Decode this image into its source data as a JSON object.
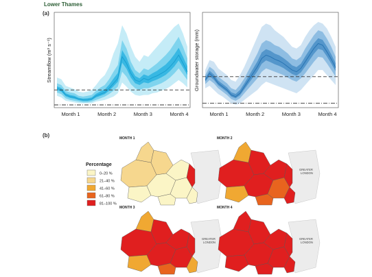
{
  "figure_title": "Lower Thames",
  "panel_a_label": "(a)",
  "panel_b_label": "(b)",
  "legend": {
    "title": "Percentage",
    "items": [
      {
        "label": "0–20 %",
        "color": "#fbf5c6"
      },
      {
        "label": "21–40 %",
        "color": "#f6d78e"
      },
      {
        "label": "41–60 %",
        "color": "#f0a832"
      },
      {
        "label": "61–80 %",
        "color": "#e8641e"
      },
      {
        "label": "81–100 %",
        "color": "#e01f1f"
      }
    ]
  },
  "map_labels": {
    "greater_london": [
      "GREATER",
      "LONDON"
    ],
    "map_titles": [
      "MONTH 1",
      "MONTH 2",
      "MONTH 3",
      "MONTH 4"
    ]
  },
  "chart_data": [
    {
      "type": "area",
      "ylabel": "Streamflow (m³ s⁻¹)",
      "xlabel": "",
      "categories": [
        "Month 1",
        "Month 2",
        "Month 3",
        "Month 4"
      ],
      "x": [
        0,
        0.15,
        0.3,
        0.45,
        0.6,
        0.75,
        0.9,
        1.05,
        1.2,
        1.35,
        1.5,
        1.65,
        1.8,
        1.95,
        2.1,
        2.25,
        2.4,
        2.55,
        2.7,
        2.85,
        3.0,
        3.15,
        3.3,
        3.45,
        3.6,
        3.75,
        3.9,
        4.05,
        4.2,
        4.35,
        4.5
      ],
      "median": [
        0.2,
        0.18,
        0.12,
        0.1,
        0.09,
        0.07,
        0.06,
        0.06,
        0.07,
        0.11,
        0.13,
        0.15,
        0.2,
        0.26,
        0.32,
        0.58,
        0.5,
        0.38,
        0.3,
        0.28,
        0.32,
        0.3,
        0.33,
        0.35,
        0.38,
        0.41,
        0.46,
        0.52,
        0.6,
        0.5,
        0.4
      ],
      "bands": [
        {
          "lo": [
            0.15,
            0.13,
            0.08,
            0.06,
            0.05,
            0.04,
            0.03,
            0.03,
            0.04,
            0.06,
            0.08,
            0.1,
            0.13,
            0.17,
            0.22,
            0.4,
            0.34,
            0.25,
            0.2,
            0.18,
            0.2,
            0.2,
            0.22,
            0.24,
            0.26,
            0.29,
            0.33,
            0.38,
            0.44,
            0.37,
            0.3
          ],
          "hi": [
            0.26,
            0.24,
            0.17,
            0.15,
            0.14,
            0.11,
            0.1,
            0.11,
            0.12,
            0.17,
            0.21,
            0.24,
            0.31,
            0.4,
            0.48,
            0.78,
            0.68,
            0.52,
            0.42,
            0.38,
            0.44,
            0.42,
            0.46,
            0.5,
            0.55,
            0.6,
            0.66,
            0.74,
            0.82,
            0.7,
            0.56
          ]
        },
        {
          "lo": [
            0.11,
            0.09,
            0.05,
            0.04,
            0.03,
            0.02,
            0.02,
            0.02,
            0.02,
            0.04,
            0.05,
            0.06,
            0.08,
            0.1,
            0.14,
            0.27,
            0.22,
            0.16,
            0.12,
            0.11,
            0.12,
            0.12,
            0.14,
            0.15,
            0.17,
            0.19,
            0.22,
            0.26,
            0.3,
            0.26,
            0.21
          ],
          "hi": [
            0.33,
            0.31,
            0.23,
            0.21,
            0.19,
            0.16,
            0.15,
            0.16,
            0.18,
            0.24,
            0.31,
            0.36,
            0.46,
            0.62,
            0.74,
            0.96,
            0.86,
            0.7,
            0.58,
            0.52,
            0.6,
            0.58,
            0.64,
            0.7,
            0.76,
            0.82,
            0.88,
            0.94,
            0.98,
            0.86,
            0.7
          ]
        }
      ],
      "thresholds": [
        0.18,
        0.0
      ],
      "ylim": [
        0,
        1
      ]
    },
    {
      "type": "area",
      "ylabel": "Groundwater storage (mm)",
      "xlabel": "",
      "categories": [
        "Month 1",
        "Month 2",
        "Month 3",
        "Month 4"
      ],
      "x": [
        0,
        0.15,
        0.3,
        0.45,
        0.6,
        0.75,
        0.9,
        1.05,
        1.2,
        1.35,
        1.5,
        1.65,
        1.8,
        1.95,
        2.1,
        2.25,
        2.4,
        2.55,
        2.7,
        2.85,
        3.0,
        3.15,
        3.3,
        3.45,
        3.6,
        3.75,
        3.9,
        4.05,
        4.2,
        4.35,
        4.5
      ],
      "median": [
        0.3,
        0.38,
        0.33,
        0.26,
        0.22,
        0.18,
        0.12,
        0.1,
        0.14,
        0.22,
        0.3,
        0.38,
        0.46,
        0.56,
        0.6,
        0.58,
        0.55,
        0.53,
        0.5,
        0.46,
        0.42,
        0.4,
        0.44,
        0.52,
        0.6,
        0.68,
        0.74,
        0.72,
        0.64,
        0.55,
        0.45
      ],
      "bands": [
        {
          "lo": [
            0.25,
            0.3,
            0.26,
            0.2,
            0.16,
            0.12,
            0.07,
            0.05,
            0.08,
            0.14,
            0.2,
            0.26,
            0.32,
            0.4,
            0.44,
            0.42,
            0.4,
            0.38,
            0.36,
            0.33,
            0.3,
            0.28,
            0.32,
            0.38,
            0.45,
            0.52,
            0.58,
            0.57,
            0.5,
            0.42,
            0.34
          ],
          "hi": [
            0.36,
            0.46,
            0.42,
            0.34,
            0.3,
            0.26,
            0.2,
            0.18,
            0.24,
            0.32,
            0.42,
            0.52,
            0.62,
            0.74,
            0.78,
            0.76,
            0.72,
            0.7,
            0.66,
            0.62,
            0.56,
            0.54,
            0.58,
            0.68,
            0.76,
            0.84,
            0.9,
            0.88,
            0.8,
            0.7,
            0.58
          ]
        },
        {
          "lo": [
            0.2,
            0.23,
            0.18,
            0.13,
            0.1,
            0.06,
            0.02,
            0.0,
            0.02,
            0.06,
            0.1,
            0.14,
            0.18,
            0.24,
            0.28,
            0.26,
            0.24,
            0.22,
            0.2,
            0.18,
            0.16,
            0.14,
            0.18,
            0.24,
            0.3,
            0.36,
            0.42,
            0.42,
            0.36,
            0.3,
            0.24
          ],
          "hi": [
            0.42,
            0.54,
            0.52,
            0.44,
            0.4,
            0.36,
            0.3,
            0.28,
            0.36,
            0.46,
            0.58,
            0.7,
            0.82,
            0.94,
            0.98,
            0.96,
            0.9,
            0.86,
            0.82,
            0.76,
            0.7,
            0.68,
            0.72,
            0.82,
            0.9,
            0.96,
            1.0,
            0.98,
            0.92,
            0.82,
            0.7
          ]
        }
      ],
      "thresholds": [
        0.34,
        0.02
      ],
      "ylim": [
        0,
        1
      ]
    }
  ]
}
